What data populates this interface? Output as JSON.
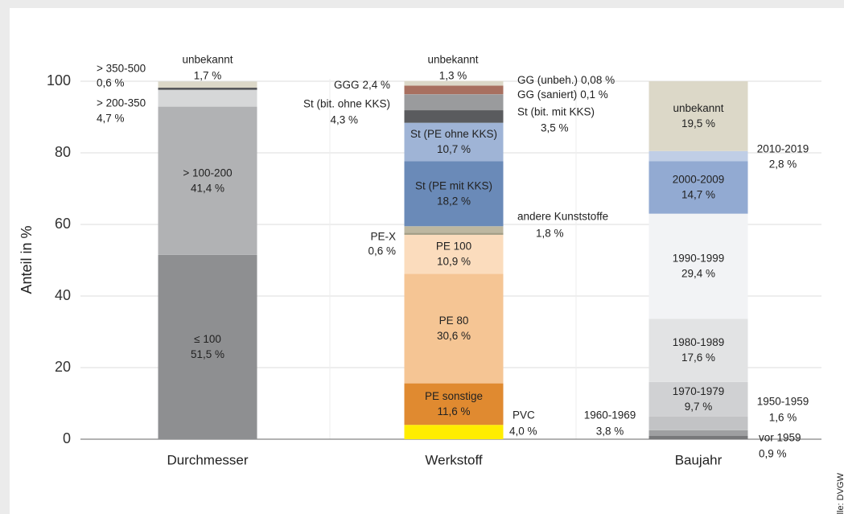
{
  "chart_data": {
    "type": "bar",
    "stacked": true,
    "y_label": "Anteil in %",
    "source": "Quelle: DVGW",
    "ylim": [
      0,
      100
    ],
    "yticks": [
      0,
      20,
      40,
      60,
      80,
      100
    ],
    "grid": true,
    "bars": [
      {
        "category": "Durchmesser",
        "segments": [
          {
            "name": "≤ 100",
            "value": 51.5,
            "value_label": "51,5 %",
            "color": "#8e8f91"
          },
          {
            "name": "> 100-200",
            "value": 41.4,
            "value_label": "41,4 %",
            "color": "#b1b2b4"
          },
          {
            "name": "> 200-350",
            "value": 4.7,
            "value_label": "4,7 %",
            "color": "#d6d7d8"
          },
          {
            "name": "> 350-500",
            "value": 0.6,
            "value_label": "0,6 %",
            "color": "#55565a"
          },
          {
            "name": "unbekannt",
            "value": 1.7,
            "value_label": "1,7 %",
            "color": "#dcd8c8"
          }
        ]
      },
      {
        "category": "Werkstoff",
        "segments": [
          {
            "name": "PVC",
            "value": 4.0,
            "value_label": "4,0 %",
            "color": "#ffed00"
          },
          {
            "name": "PE sonstige",
            "value": 11.6,
            "value_label": "11,6 %",
            "color": "#e08a30"
          },
          {
            "name": "PE 80",
            "value": 30.6,
            "value_label": "30,6 %",
            "color": "#f5c594"
          },
          {
            "name": "PE 100",
            "value": 10.9,
            "value_label": "10,9 %",
            "color": "#fbdcbd"
          },
          {
            "name": "PE-X",
            "value": 0.6,
            "value_label": "0,6 %",
            "color": "#a39d84"
          },
          {
            "name": "andere Kunststoffe",
            "value": 1.8,
            "value_label": "1,8 %",
            "color": "#bdb7a0"
          },
          {
            "name": "St (PE mit KKS)",
            "value": 18.2,
            "value_label": "18,2 %",
            "color": "#6a8ab8"
          },
          {
            "name": "St (PE ohne KKS)",
            "value": 10.7,
            "value_label": "10,7 %",
            "color": "#9fb4d6"
          },
          {
            "name": "St (bit. mit KKS)",
            "value": 3.5,
            "value_label": "3,5 %",
            "color": "#5a5b5e"
          },
          {
            "name": "St (bit. ohne KKS)",
            "value": 4.3,
            "value_label": "4,3 %",
            "color": "#9a9b9d"
          },
          {
            "name": "GG (saniert)",
            "value": 0.1,
            "value_label": "0,1 %",
            "color": "#777777"
          },
          {
            "name": "GG (unbeh.)",
            "value": 0.08,
            "value_label": "0,08 %",
            "color": "#cccccc"
          },
          {
            "name": "GGG",
            "value": 2.4,
            "value_label": "2,4 %",
            "color": "#a87060"
          },
          {
            "name": "unbekannt",
            "value": 1.3,
            "value_label": "1,3 %",
            "color": "#dcd8c8"
          }
        ]
      },
      {
        "category": "Baujahr",
        "segments": [
          {
            "name": "vor 1959",
            "value": 0.9,
            "value_label": "0,9 %",
            "color": "#77787a"
          },
          {
            "name": "1950-1959",
            "value": 1.6,
            "value_label": "1,6 %",
            "color": "#9e9fa1"
          },
          {
            "name": "1960-1969",
            "value": 3.8,
            "value_label": "3,8 %",
            "color": "#c2c3c5"
          },
          {
            "name": "1970-1979",
            "value": 9.7,
            "value_label": "9,7 %",
            "color": "#d0d1d3"
          },
          {
            "name": "1980-1989",
            "value": 17.6,
            "value_label": "17,6 %",
            "color": "#e2e3e4"
          },
          {
            "name": "1990-1999",
            "value": 29.4,
            "value_label": "29,4 %",
            "color": "#f2f3f5"
          },
          {
            "name": "2000-2009",
            "value": 14.7,
            "value_label": "14,7 %",
            "color": "#92aad2"
          },
          {
            "name": "2010-2019",
            "value": 2.8,
            "value_label": "2,8 %",
            "color": "#c0cee6"
          },
          {
            "name": "unbekannt",
            "value": 19.5,
            "value_label": "19,5 %",
            "color": "#dcd8c8"
          }
        ]
      }
    ]
  }
}
